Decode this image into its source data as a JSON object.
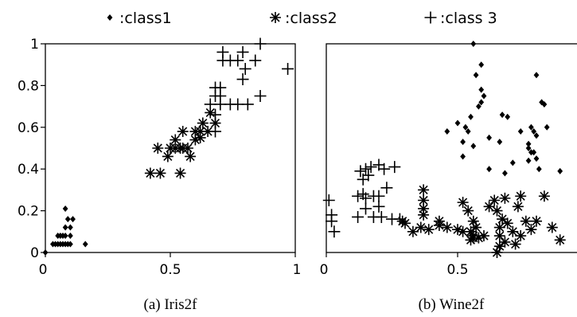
{
  "legend": [
    {
      "label": ":class1",
      "marker": "diamond"
    },
    {
      "label": ":class2",
      "marker": "asterisk"
    },
    {
      "label": ":class 3",
      "marker": "plus"
    }
  ],
  "chart_data": [
    {
      "type": "scatter",
      "caption": "(a) Iris2f",
      "xlim": [
        0,
        1
      ],
      "ylim": [
        0,
        1
      ],
      "xticks": [
        {
          "value": 0,
          "label": "0"
        },
        {
          "value": 0.5,
          "label": "0.5"
        },
        {
          "value": 1,
          "label": "1"
        }
      ],
      "yticks": [
        {
          "value": 0,
          "label": "0"
        },
        {
          "value": 0.2,
          "label": "0.2"
        },
        {
          "value": 0.4,
          "label": "0.4"
        },
        {
          "value": 0.6,
          "label": "0.6"
        },
        {
          "value": 0.8,
          "label": "0.8"
        },
        {
          "value": 1,
          "label": "1"
        }
      ],
      "grid": false,
      "series": [
        {
          "marker": "diamond",
          "points": [
            [
              0.0,
              0.0
            ],
            [
              0.03,
              0.04
            ],
            [
              0.04,
              0.04
            ],
            [
              0.05,
              0.04
            ],
            [
              0.06,
              0.04
            ],
            [
              0.07,
              0.04
            ],
            [
              0.08,
              0.04
            ],
            [
              0.09,
              0.04
            ],
            [
              0.1,
              0.04
            ],
            [
              0.05,
              0.08
            ],
            [
              0.06,
              0.08
            ],
            [
              0.07,
              0.08
            ],
            [
              0.08,
              0.08
            ],
            [
              0.1,
              0.08
            ],
            [
              0.08,
              0.12
            ],
            [
              0.1,
              0.12
            ],
            [
              0.09,
              0.16
            ],
            [
              0.11,
              0.16
            ],
            [
              0.08,
              0.21
            ],
            [
              0.16,
              0.04
            ]
          ]
        },
        {
          "marker": "asterisk",
          "points": [
            [
              0.42,
              0.38
            ],
            [
              0.46,
              0.38
            ],
            [
              0.54,
              0.38
            ],
            [
              0.45,
              0.5
            ],
            [
              0.49,
              0.46
            ],
            [
              0.5,
              0.5
            ],
            [
              0.52,
              0.5
            ],
            [
              0.54,
              0.5
            ],
            [
              0.55,
              0.5
            ],
            [
              0.57,
              0.5
            ],
            [
              0.52,
              0.54
            ],
            [
              0.55,
              0.58
            ],
            [
              0.58,
              0.46
            ],
            [
              0.6,
              0.54
            ],
            [
              0.6,
              0.58
            ],
            [
              0.62,
              0.58
            ],
            [
              0.62,
              0.55
            ],
            [
              0.63,
              0.62
            ],
            [
              0.65,
              0.58
            ],
            [
              0.66,
              0.67
            ],
            [
              0.68,
              0.62
            ]
          ]
        },
        {
          "marker": "plus",
          "points": [
            [
              0.68,
              0.58
            ],
            [
              0.68,
              0.66
            ],
            [
              0.66,
              0.71
            ],
            [
              0.7,
              0.71
            ],
            [
              0.68,
              0.75
            ],
            [
              0.7,
              0.75
            ],
            [
              0.68,
              0.79
            ],
            [
              0.7,
              0.79
            ],
            [
              0.74,
              0.71
            ],
            [
              0.77,
              0.71
            ],
            [
              0.81,
              0.71
            ],
            [
              0.86,
              0.75
            ],
            [
              0.79,
              0.83
            ],
            [
              0.8,
              0.88
            ],
            [
              0.71,
              0.92
            ],
            [
              0.74,
              0.92
            ],
            [
              0.77,
              0.92
            ],
            [
              0.71,
              0.96
            ],
            [
              0.79,
              0.96
            ],
            [
              0.84,
              0.92
            ],
            [
              0.86,
              1.0
            ],
            [
              0.97,
              0.88
            ]
          ]
        }
      ]
    },
    {
      "type": "scatter",
      "caption": "(b) Wine2f",
      "xlim": [
        0,
        1
      ],
      "ylim": [
        0,
        1
      ],
      "xticks": [
        {
          "value": 0,
          "label": "0"
        },
        {
          "value": 0.5,
          "label": "0.5"
        }
      ],
      "yticks": [],
      "grid": false,
      "series": [
        {
          "marker": "diamond",
          "points": [
            [
              0.56,
              1.0
            ],
            [
              0.59,
              0.9
            ],
            [
              0.57,
              0.85
            ],
            [
              0.59,
              0.78
            ],
            [
              0.59,
              0.72
            ],
            [
              0.6,
              0.75
            ],
            [
              0.58,
              0.7
            ],
            [
              0.8,
              0.85
            ],
            [
              0.67,
              0.66
            ],
            [
              0.69,
              0.65
            ],
            [
              0.82,
              0.72
            ],
            [
              0.83,
              0.71
            ],
            [
              0.84,
              0.6
            ],
            [
              0.78,
              0.6
            ],
            [
              0.74,
              0.58
            ],
            [
              0.79,
              0.58
            ],
            [
              0.8,
              0.56
            ],
            [
              0.77,
              0.5
            ],
            [
              0.79,
              0.48
            ],
            [
              0.77,
              0.44
            ],
            [
              0.81,
              0.4
            ],
            [
              0.8,
              0.45
            ],
            [
              0.78,
              0.48
            ],
            [
              0.77,
              0.52
            ],
            [
              0.55,
              0.65
            ],
            [
              0.5,
              0.62
            ],
            [
              0.46,
              0.58
            ],
            [
              0.54,
              0.58
            ],
            [
              0.52,
              0.53
            ],
            [
              0.56,
              0.51
            ],
            [
              0.62,
              0.55
            ],
            [
              0.66,
              0.53
            ],
            [
              0.53,
              0.6
            ],
            [
              0.71,
              0.43
            ],
            [
              0.68,
              0.38
            ],
            [
              0.89,
              0.39
            ],
            [
              0.52,
              0.46
            ],
            [
              0.62,
              0.4
            ]
          ]
        },
        {
          "marker": "asterisk",
          "points": [
            [
              0.37,
              0.3
            ],
            [
              0.37,
              0.25
            ],
            [
              0.37,
              0.21
            ],
            [
              0.37,
              0.18
            ],
            [
              0.36,
              0.12
            ],
            [
              0.29,
              0.15
            ],
            [
              0.3,
              0.14
            ],
            [
              0.33,
              0.1
            ],
            [
              0.39,
              0.11
            ],
            [
              0.43,
              0.13
            ],
            [
              0.46,
              0.12
            ],
            [
              0.43,
              0.15
            ],
            [
              0.5,
              0.11
            ],
            [
              0.52,
              0.1
            ],
            [
              0.55,
              0.1
            ],
            [
              0.56,
              0.08
            ],
            [
              0.55,
              0.06
            ],
            [
              0.56,
              0.07
            ],
            [
              0.58,
              0.07
            ],
            [
              0.6,
              0.08
            ],
            [
              0.57,
              0.12
            ],
            [
              0.56,
              0.15
            ],
            [
              0.54,
              0.2
            ],
            [
              0.52,
              0.24
            ],
            [
              0.62,
              0.22
            ],
            [
              0.64,
              0.25
            ],
            [
              0.65,
              0.2
            ],
            [
              0.67,
              0.16
            ],
            [
              0.66,
              0.12
            ],
            [
              0.66,
              0.08
            ],
            [
              0.68,
              0.05
            ],
            [
              0.66,
              0.03
            ],
            [
              0.65,
              0.0
            ],
            [
              0.69,
              0.14
            ],
            [
              0.71,
              0.1
            ],
            [
              0.72,
              0.04
            ],
            [
              0.74,
              0.27
            ],
            [
              0.76,
              0.15
            ],
            [
              0.74,
              0.08
            ],
            [
              0.78,
              0.11
            ],
            [
              0.8,
              0.15
            ],
            [
              0.83,
              0.27
            ],
            [
              0.86,
              0.12
            ],
            [
              0.89,
              0.06
            ],
            [
              0.73,
              0.22
            ],
            [
              0.68,
              0.26
            ]
          ]
        },
        {
          "marker": "plus",
          "points": [
            [
              0.01,
              0.25
            ],
            [
              0.02,
              0.18
            ],
            [
              0.02,
              0.15
            ],
            [
              0.03,
              0.1
            ],
            [
              0.12,
              0.27
            ],
            [
              0.14,
              0.28
            ],
            [
              0.15,
              0.26
            ],
            [
              0.18,
              0.27
            ],
            [
              0.2,
              0.27
            ],
            [
              0.23,
              0.31
            ],
            [
              0.14,
              0.35
            ],
            [
              0.16,
              0.37
            ],
            [
              0.13,
              0.39
            ],
            [
              0.15,
              0.4
            ],
            [
              0.17,
              0.41
            ],
            [
              0.2,
              0.42
            ],
            [
              0.26,
              0.41
            ],
            [
              0.22,
              0.4
            ],
            [
              0.12,
              0.17
            ],
            [
              0.18,
              0.17
            ],
            [
              0.21,
              0.17
            ],
            [
              0.25,
              0.16
            ],
            [
              0.28,
              0.16
            ],
            [
              0.15,
              0.21
            ],
            [
              0.2,
              0.22
            ]
          ]
        }
      ]
    }
  ]
}
